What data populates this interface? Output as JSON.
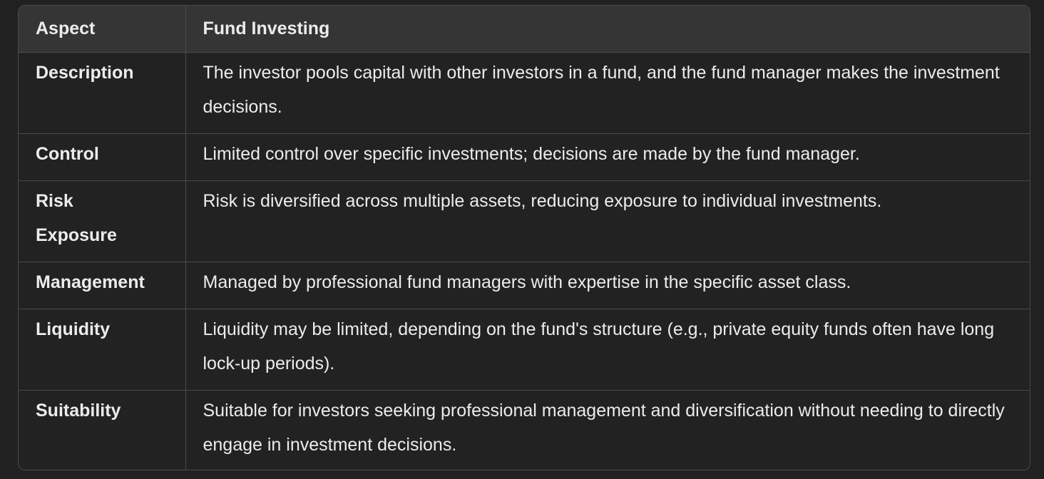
{
  "table": {
    "headers": [
      "Aspect",
      "Fund Investing"
    ],
    "rows": [
      {
        "aspect": "Description",
        "value": "The investor pools capital with other investors in a fund, and the fund manager makes the investment decisions."
      },
      {
        "aspect": "Control",
        "value": "Limited control over specific investments; decisions are made by the fund manager."
      },
      {
        "aspect": "Risk Exposure",
        "value": "Risk is diversified across multiple assets, reducing exposure to individual investments."
      },
      {
        "aspect": "Management",
        "value": "Managed by professional fund managers with expertise in the specific asset class."
      },
      {
        "aspect": "Liquidity",
        "value": "Liquidity may be limited, depending on the fund's structure (e.g., private equity funds often have long lock-up periods)."
      },
      {
        "aspect": "Suitability",
        "value": "Suitable for investors seeking professional management and diversification without needing to directly engage in investment decisions."
      }
    ]
  }
}
